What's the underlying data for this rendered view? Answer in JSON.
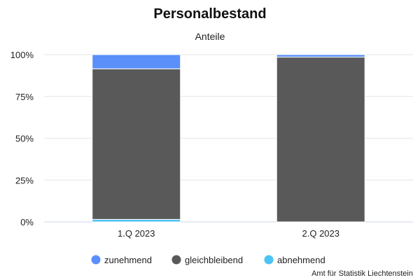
{
  "chart_data": {
    "type": "bar",
    "stacked": true,
    "title": "Personalbestand",
    "subtitle": "Anteile",
    "categories": [
      "1.Q 2023",
      "2.Q 2023"
    ],
    "series": [
      {
        "name": "zunehmend",
        "values": [
          8.5,
          1.5
        ],
        "color": "#5b8ff9"
      },
      {
        "name": "gleichbleibend",
        "values": [
          90,
          98.5
        ],
        "color": "#595959"
      },
      {
        "name": "abnehmend",
        "values": [
          1.5,
          0
        ],
        "color": "#4cc3f5"
      }
    ],
    "y_ticks": [
      "0%",
      "25%",
      "50%",
      "75%",
      "100%"
    ],
    "ylim": [
      0,
      100
    ],
    "grid": true,
    "legend_position": "bottom"
  },
  "credits": "Amt für Statistik Liechtenstein"
}
